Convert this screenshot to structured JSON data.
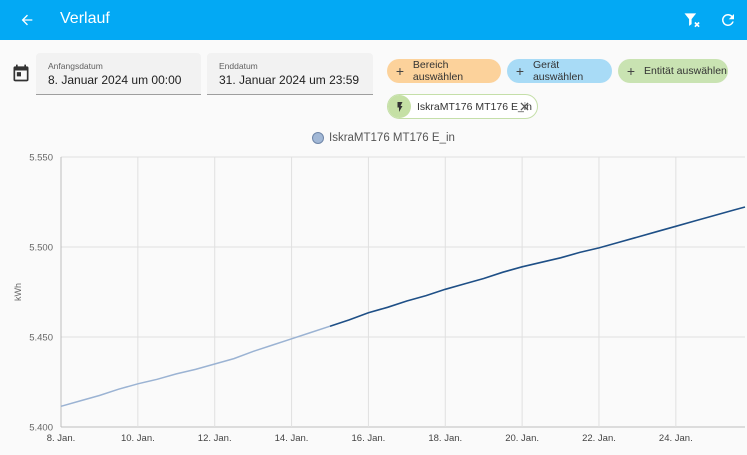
{
  "header": {
    "title": "Verlauf"
  },
  "dates": {
    "start": {
      "label": "Anfangsdatum",
      "value": "8. Januar 2024 um 00:00"
    },
    "end": {
      "label": "Enddatum",
      "value": "31. Januar 2024 um 23:59"
    }
  },
  "chips": {
    "area": "Bereich auswählen",
    "device": "Gerät auswählen",
    "entity": "Entität auswählen"
  },
  "selected_entity": "IskraMT176 MT176 E_in",
  "colors": {
    "header": "#03a9f4",
    "line": "#1e4f86",
    "line_faded": "#9bb3d3"
  },
  "chart_data": {
    "type": "line",
    "legend": "IskraMT176 MT176 E_in",
    "ylabel": "kWh",
    "ylim": [
      5.4,
      5.55
    ],
    "yticks": [
      "5.400",
      "5.450",
      "5.500",
      "5.550"
    ],
    "xlim_days": [
      8,
      25.8
    ],
    "xticks": [
      "8. Jan.",
      "10. Jan.",
      "12. Jan.",
      "14. Jan.",
      "16. Jan.",
      "18. Jan.",
      "20. Jan.",
      "22. Jan.",
      "24. Jan."
    ],
    "highlight_from_day": 15.2,
    "series": [
      {
        "x": [
          8,
          8.5,
          9,
          9.5,
          10,
          10.5,
          11,
          11.5,
          12,
          12.5,
          13,
          13.5,
          14,
          14.5,
          15,
          15.5,
          16,
          16.5,
          17,
          17.5,
          18,
          18.5,
          19,
          19.5,
          20,
          20.5,
          21,
          21.5,
          22,
          22.5,
          23,
          23.5,
          24,
          24.5,
          25,
          25.5,
          25.8
        ],
        "y": [
          5.4115,
          5.4145,
          5.4175,
          5.421,
          5.424,
          5.4265,
          5.4295,
          5.432,
          5.435,
          5.438,
          5.442,
          5.4455,
          5.449,
          5.4525,
          5.456,
          5.4595,
          5.4635,
          5.4665,
          5.47,
          5.473,
          5.4765,
          5.4795,
          5.4825,
          5.486,
          5.489,
          5.4915,
          5.494,
          5.497,
          5.4995,
          5.5025,
          5.5055,
          5.5085,
          5.5115,
          5.5145,
          5.5175,
          5.5205,
          5.5222
        ]
      }
    ]
  }
}
